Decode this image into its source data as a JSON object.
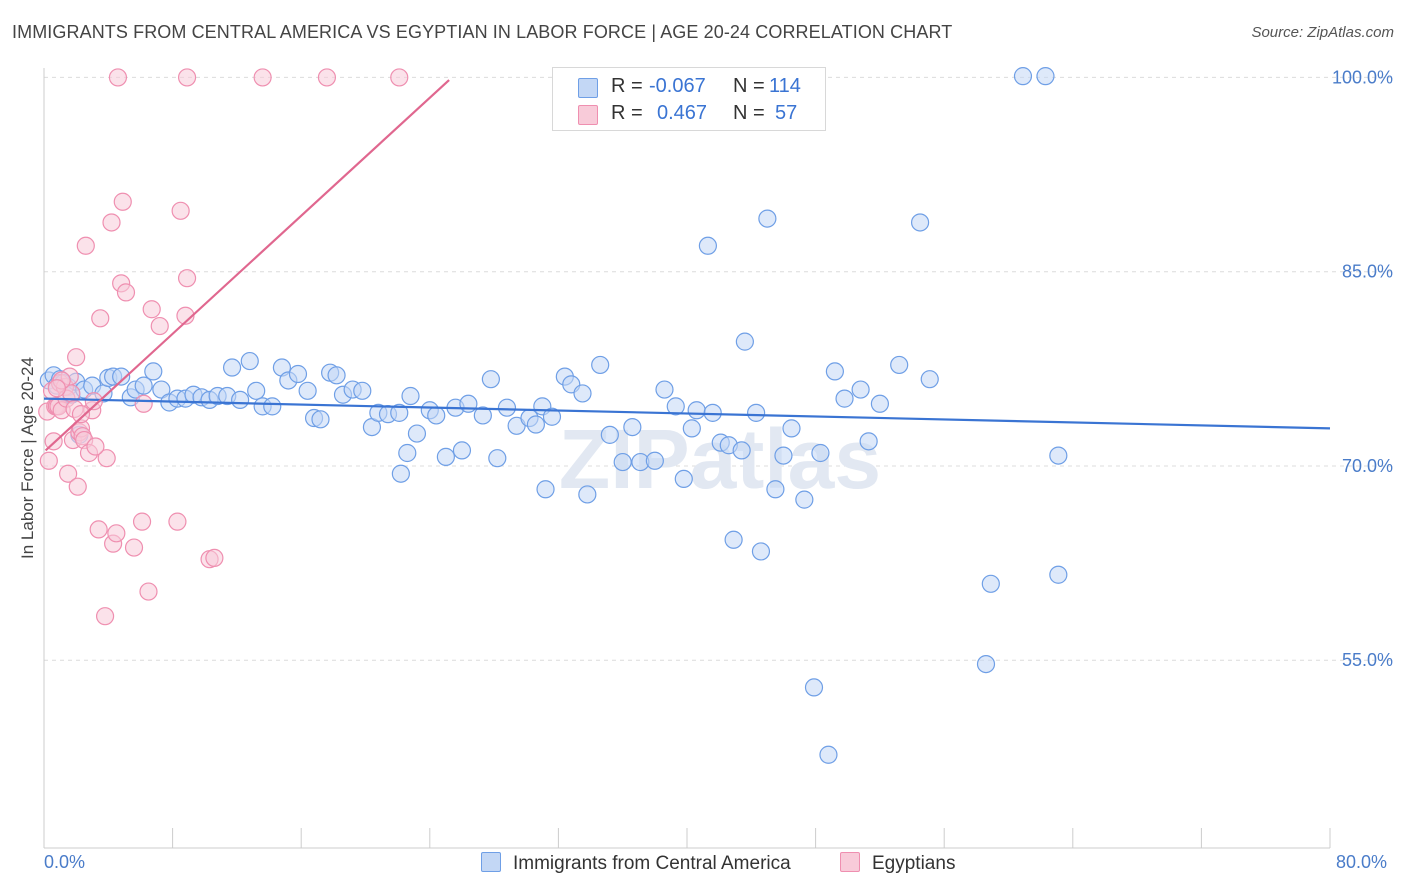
{
  "title": "IMMIGRANTS FROM CENTRAL AMERICA VS EGYPTIAN IN LABOR FORCE | AGE 20-24 CORRELATION CHART",
  "source": "Source: ZipAtlas.com",
  "watermark": "ZIPatlas",
  "legend": {
    "series1": {
      "r_label": "R =",
      "r_value": "-0.067",
      "n_label": "N =",
      "n_value": "114"
    },
    "series2": {
      "r_label": "R =",
      "r_value": "0.467",
      "n_label": "N =",
      "n_value": "57"
    }
  },
  "bottom_legend": {
    "series1": "Immigrants from Central America",
    "series2": "Egyptians"
  },
  "x_axis": {
    "min_label": "0.0%",
    "max_label": "80.0%"
  },
  "chart_data": {
    "type": "scatter",
    "title": "IMMIGRANTS FROM CENTRAL AMERICA VS EGYPTIAN IN LABOR FORCE | AGE 20-24 CORRELATION CHART",
    "xlabel": "",
    "ylabel": "In Labor Force | Age 20-24",
    "xlim": [
      0,
      80
    ],
    "ylim": [
      40.5,
      101.5
    ],
    "y_ticks": [
      55,
      70,
      85,
      100
    ],
    "y_tick_labels": [
      "55.0%",
      "70.0%",
      "85.0%",
      "100.0%"
    ],
    "x_tick_labels": [
      "0.0%",
      "80.0%"
    ],
    "grid": true,
    "legend_position": "top-center",
    "series": [
      {
        "name": "Immigrants from Central America",
        "color": "#6f9fe6",
        "fill": "#c3d7f5",
        "r": -0.067,
        "n": 114,
        "trend": {
          "x": [
            0,
            80
          ],
          "y": [
            75.2,
            72.9
          ]
        },
        "points": [
          [
            0.3,
            76.6
          ],
          [
            0.6,
            77.0
          ],
          [
            0.8,
            76.2
          ],
          [
            1.0,
            76.7
          ],
          [
            1.2,
            76.4
          ],
          [
            1.5,
            76.1
          ],
          [
            1.7,
            75.5
          ],
          [
            2.0,
            76.5
          ],
          [
            2.2,
            72.4
          ],
          [
            2.5,
            75.9
          ],
          [
            3.0,
            76.2
          ],
          [
            3.7,
            75.6
          ],
          [
            4.0,
            76.8
          ],
          [
            4.3,
            76.9
          ],
          [
            4.8,
            76.9
          ],
          [
            5.4,
            75.3
          ],
          [
            5.7,
            75.9
          ],
          [
            6.2,
            76.2
          ],
          [
            6.8,
            77.3
          ],
          [
            7.3,
            75.9
          ],
          [
            7.8,
            74.9
          ],
          [
            8.3,
            75.2
          ],
          [
            8.8,
            75.2
          ],
          [
            9.3,
            75.5
          ],
          [
            9.8,
            75.3
          ],
          [
            10.3,
            75.1
          ],
          [
            10.8,
            75.4
          ],
          [
            11.4,
            75.4
          ],
          [
            12.2,
            75.1
          ],
          [
            11.7,
            77.6
          ],
          [
            12.8,
            78.1
          ],
          [
            13.2,
            75.8
          ],
          [
            13.6,
            74.6
          ],
          [
            14.2,
            74.6
          ],
          [
            14.8,
            77.6
          ],
          [
            15.2,
            76.6
          ],
          [
            15.8,
            77.1
          ],
          [
            16.4,
            75.8
          ],
          [
            16.8,
            73.7
          ],
          [
            17.2,
            73.6
          ],
          [
            17.8,
            77.2
          ],
          [
            18.2,
            77.0
          ],
          [
            18.6,
            75.5
          ],
          [
            19.2,
            75.9
          ],
          [
            19.8,
            75.8
          ],
          [
            20.4,
            73.0
          ],
          [
            20.8,
            74.1
          ],
          [
            21.4,
            74.0
          ],
          [
            22.1,
            74.1
          ],
          [
            22.8,
            75.4
          ],
          [
            22.2,
            69.4
          ],
          [
            22.6,
            71.0
          ],
          [
            23.2,
            72.5
          ],
          [
            24.0,
            74.3
          ],
          [
            24.4,
            73.9
          ],
          [
            25.0,
            70.7
          ],
          [
            25.6,
            74.5
          ],
          [
            26.0,
            71.2
          ],
          [
            26.4,
            74.8
          ],
          [
            27.3,
            73.9
          ],
          [
            27.8,
            76.7
          ],
          [
            28.2,
            70.6
          ],
          [
            28.8,
            74.5
          ],
          [
            29.4,
            73.1
          ],
          [
            30.2,
            73.7
          ],
          [
            30.6,
            73.2
          ],
          [
            31.0,
            74.6
          ],
          [
            31.6,
            73.8
          ],
          [
            31.2,
            68.2
          ],
          [
            32.4,
            76.9
          ],
          [
            32.8,
            76.3
          ],
          [
            33.5,
            75.6
          ],
          [
            33.8,
            67.8
          ],
          [
            34.6,
            77.8
          ],
          [
            35.2,
            72.4
          ],
          [
            36.0,
            70.3
          ],
          [
            36.6,
            73.0
          ],
          [
            37.1,
            70.3
          ],
          [
            38.0,
            70.4
          ],
          [
            38.6,
            75.9
          ],
          [
            39.3,
            74.6
          ],
          [
            39.8,
            69.0
          ],
          [
            40.3,
            72.9
          ],
          [
            40.6,
            74.3
          ],
          [
            41.6,
            74.1
          ],
          [
            41.3,
            87.0
          ],
          [
            42.1,
            71.8
          ],
          [
            42.6,
            71.6
          ],
          [
            42.9,
            64.3
          ],
          [
            43.4,
            71.2
          ],
          [
            43.6,
            79.6
          ],
          [
            44.3,
            74.1
          ],
          [
            44.6,
            63.4
          ],
          [
            45.0,
            89.1
          ],
          [
            45.5,
            68.2
          ],
          [
            46.0,
            70.8
          ],
          [
            46.5,
            72.9
          ],
          [
            47.3,
            67.4
          ],
          [
            47.9,
            52.9
          ],
          [
            48.3,
            71.0
          ],
          [
            49.2,
            77.3
          ],
          [
            48.8,
            47.7
          ],
          [
            49.8,
            75.2
          ],
          [
            50.8,
            75.9
          ],
          [
            51.3,
            71.9
          ],
          [
            52.0,
            74.8
          ],
          [
            53.2,
            77.8
          ],
          [
            54.5,
            88.8
          ],
          [
            55.1,
            76.7
          ],
          [
            58.6,
            54.7
          ],
          [
            58.9,
            60.9
          ],
          [
            60.9,
            100.1
          ],
          [
            62.3,
            100.1
          ],
          [
            63.1,
            61.6
          ],
          [
            63.1,
            70.8
          ],
          [
            47.0,
            100.1
          ]
        ]
      },
      {
        "name": "Egyptians",
        "color": "#ef8fb0",
        "fill": "#f8cbd9",
        "r": 0.467,
        "n": 57,
        "trend": {
          "x": [
            0.1,
            25.2
          ],
          "y": [
            71.2,
            99.8
          ]
        },
        "points": [
          [
            0.2,
            74.2
          ],
          [
            0.3,
            70.4
          ],
          [
            0.5,
            75.8
          ],
          [
            0.6,
            71.9
          ],
          [
            0.7,
            74.6
          ],
          [
            0.8,
            74.6
          ],
          [
            0.9,
            74.6
          ],
          [
            1.0,
            76.4
          ],
          [
            1.1,
            74.3
          ],
          [
            1.3,
            76.1
          ],
          [
            1.4,
            75.2
          ],
          [
            1.5,
            69.4
          ],
          [
            1.6,
            76.9
          ],
          [
            1.7,
            75.6
          ],
          [
            1.8,
            72.0
          ],
          [
            1.9,
            74.4
          ],
          [
            2.0,
            78.4
          ],
          [
            2.1,
            68.4
          ],
          [
            2.2,
            72.6
          ],
          [
            2.3,
            72.9
          ],
          [
            2.4,
            72.3
          ],
          [
            2.5,
            72.0
          ],
          [
            2.6,
            87.0
          ],
          [
            2.8,
            71.0
          ],
          [
            3.0,
            74.3
          ],
          [
            3.1,
            75.0
          ],
          [
            3.4,
            65.1
          ],
          [
            3.5,
            81.4
          ],
          [
            3.8,
            58.4
          ],
          [
            3.9,
            70.6
          ],
          [
            4.2,
            88.8
          ],
          [
            4.3,
            64.0
          ],
          [
            4.5,
            64.8
          ],
          [
            4.8,
            84.1
          ],
          [
            4.9,
            90.4
          ],
          [
            5.1,
            83.4
          ],
          [
            5.6,
            63.7
          ],
          [
            6.1,
            65.7
          ],
          [
            6.2,
            74.8
          ],
          [
            6.5,
            60.3
          ],
          [
            6.7,
            82.1
          ],
          [
            7.2,
            80.8
          ],
          [
            8.3,
            65.7
          ],
          [
            8.5,
            89.7
          ],
          [
            8.8,
            81.6
          ],
          [
            8.9,
            84.5
          ],
          [
            10.3,
            62.8
          ],
          [
            10.6,
            62.9
          ],
          [
            4.6,
            100.0
          ],
          [
            8.9,
            100.0
          ],
          [
            13.6,
            100.0
          ],
          [
            17.6,
            100.0
          ],
          [
            22.1,
            100.0
          ],
          [
            1.1,
            76.6
          ],
          [
            2.3,
            74.0
          ],
          [
            0.8,
            76.0
          ],
          [
            3.2,
            71.5
          ]
        ]
      }
    ]
  }
}
